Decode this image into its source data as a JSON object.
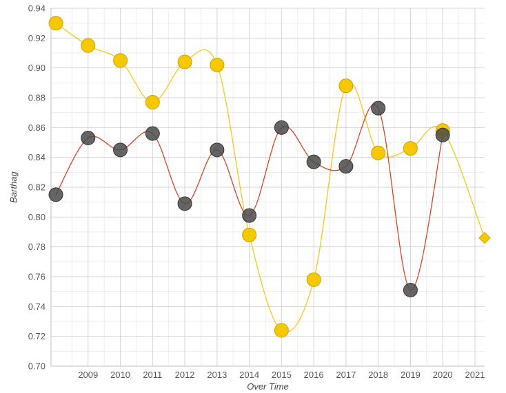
{
  "chart_data": {
    "type": "line",
    "title": "",
    "xlabel": "Over Time",
    "ylabel": "Barthag",
    "xlim": [
      2007.85,
      2021.3
    ],
    "ylim": [
      0.7,
      0.94
    ],
    "x_ticks": [
      2009,
      2010,
      2011,
      2012,
      2013,
      2014,
      2015,
      2016,
      2017,
      2018,
      2019,
      2020,
      2021
    ],
    "y_ticks": [
      0.7,
      0.72,
      0.74,
      0.76,
      0.78,
      0.8,
      0.82,
      0.84,
      0.86,
      0.88,
      0.9,
      0.92,
      0.94
    ],
    "grid": true,
    "series": [
      {
        "color": "#f5c800",
        "line_color": "#f2c81e",
        "marker": "circle",
        "x": [
          2008.0,
          2009.0,
          2010.0,
          2011.0,
          2012.0,
          2013.0,
          2014.0,
          2015.0,
          2016.0,
          2017.0,
          2018.0,
          2019.0,
          2020.0
        ],
        "y": [
          0.93,
          0.915,
          0.905,
          0.877,
          0.904,
          0.902,
          0.788,
          0.724,
          0.758,
          0.888,
          0.843,
          0.846,
          0.858
        ],
        "projection": {
          "x": 2021.3,
          "y": 0.786,
          "marker": "diamond"
        }
      },
      {
        "color": "#4a4a4a",
        "line_color": "#d0452a",
        "marker": "circle",
        "x": [
          2008.0,
          2009.0,
          2010.0,
          2011.0,
          2012.0,
          2013.0,
          2014.0,
          2015.0,
          2016.0,
          2017.0,
          2018.0,
          2019.0,
          2020.0
        ],
        "y": [
          0.815,
          0.853,
          0.845,
          0.856,
          0.809,
          0.845,
          0.801,
          0.86,
          0.837,
          0.834,
          0.873,
          0.751,
          0.855
        ]
      }
    ]
  }
}
